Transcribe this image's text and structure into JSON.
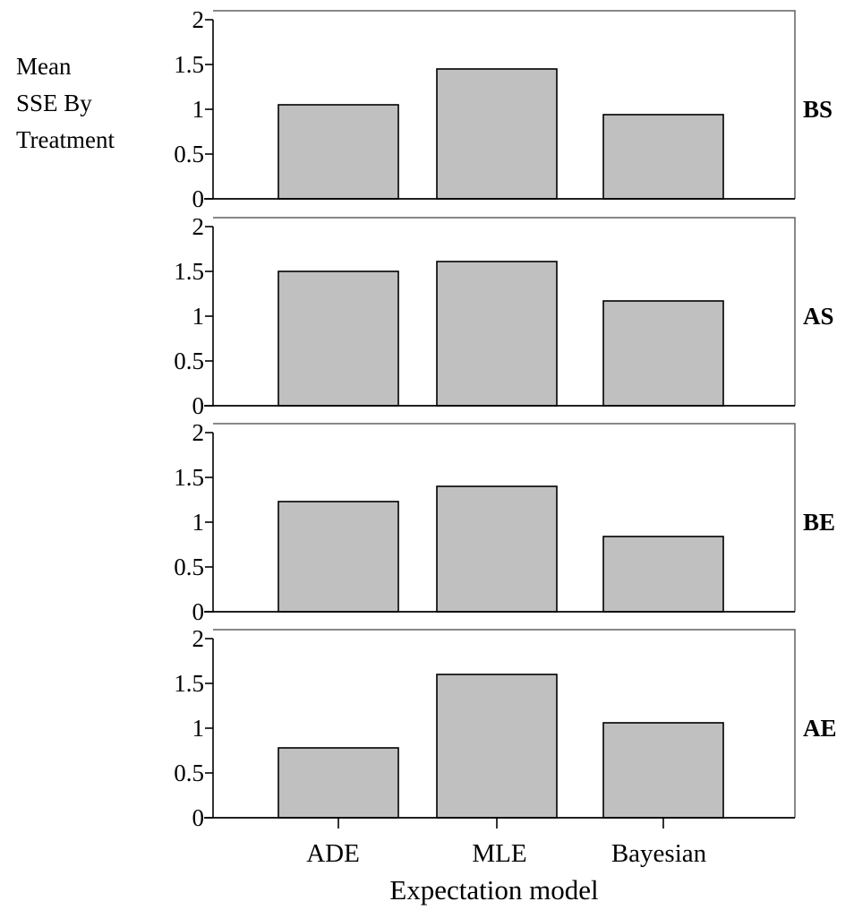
{
  "chart_data": {
    "type": "bar",
    "categories": [
      "ADE",
      "MLE",
      "Bayesian"
    ],
    "ylabel_lines": [
      "Mean",
      "SSE By",
      "Treatment"
    ],
    "xlabel": "Expectation model",
    "ylim": [
      0,
      2
    ],
    "yticks": [
      0,
      0.5,
      1,
      1.5,
      2
    ],
    "ytick_labels": [
      "0",
      "0.5",
      "1",
      "1.5",
      "2"
    ],
    "grid": false,
    "bar_color": "#c0c0c0",
    "panels": [
      {
        "label": "BS",
        "values": [
          1.05,
          1.45,
          0.94
        ]
      },
      {
        "label": "AS",
        "values": [
          1.5,
          1.61,
          1.17
        ]
      },
      {
        "label": "BE",
        "values": [
          1.23,
          1.4,
          0.84
        ]
      },
      {
        "label": "AE",
        "values": [
          0.78,
          1.6,
          1.06
        ]
      }
    ]
  }
}
